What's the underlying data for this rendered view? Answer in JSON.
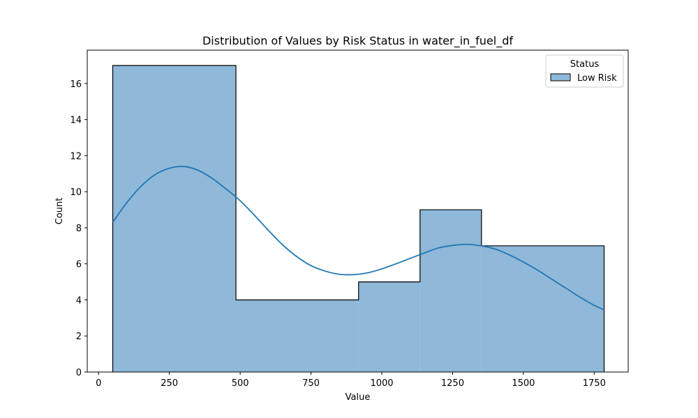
{
  "chart_data": {
    "type": "histogram",
    "title": "Distribution of Values by Risk Status in water_in_fuel_df",
    "xlabel": "Value",
    "ylabel": "Count",
    "xlim": [
      -40,
      1870
    ],
    "ylim": [
      0,
      17.85
    ],
    "xticks": [
      0,
      250,
      500,
      750,
      1000,
      1250,
      1500,
      1750
    ],
    "yticks": [
      0,
      2,
      4,
      6,
      8,
      10,
      12,
      14,
      16
    ],
    "bins": [
      {
        "x0": 50,
        "x1": 485,
        "count": 17
      },
      {
        "x0": 485,
        "x1": 918,
        "count": 4
      },
      {
        "x0": 918,
        "x1": 1135,
        "count": 5
      },
      {
        "x0": 1135,
        "x1": 1352,
        "count": 9
      },
      {
        "x0": 1352,
        "x1": 1785,
        "count": 7
      }
    ],
    "kde": {
      "x": [
        50,
        100,
        150,
        200,
        250,
        300,
        350,
        400,
        450,
        500,
        550,
        600,
        650,
        700,
        750,
        800,
        850,
        900,
        950,
        1000,
        1050,
        1100,
        1150,
        1200,
        1250,
        1300,
        1350,
        1400,
        1450,
        1500,
        1550,
        1600,
        1650,
        1700,
        1750,
        1785
      ],
      "y": [
        8.3,
        9.4,
        10.3,
        10.95,
        11.3,
        11.4,
        11.2,
        10.75,
        10.15,
        9.5,
        8.7,
        7.85,
        7.05,
        6.4,
        5.9,
        5.6,
        5.42,
        5.4,
        5.5,
        5.72,
        6.0,
        6.3,
        6.6,
        6.88,
        7.02,
        7.08,
        7.0,
        6.82,
        6.5,
        6.1,
        5.65,
        5.15,
        4.65,
        4.15,
        3.7,
        3.45
      ]
    },
    "legend": {
      "title": "Status",
      "entries": [
        {
          "label": "Low Risk",
          "color": "#8fb8d9"
        }
      ],
      "position": "upper right"
    },
    "colors": {
      "bar_fill": "#8fb8d9",
      "bar_edge": "#000000",
      "kde_line": "#1f77b4"
    },
    "grid": false
  }
}
